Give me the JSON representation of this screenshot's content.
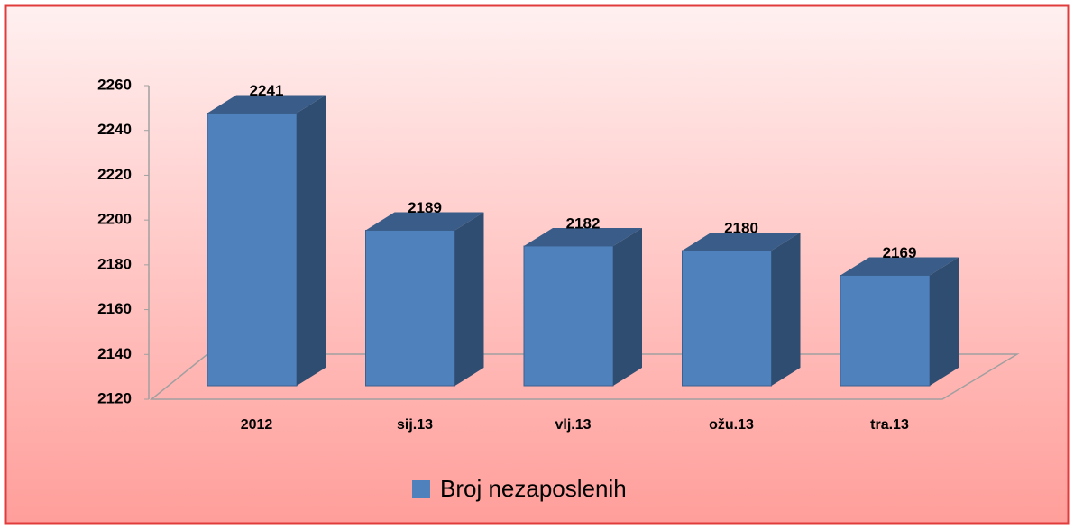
{
  "chart_data": {
    "type": "bar3d",
    "categories": [
      "2012",
      "sij.13",
      "vlj.13",
      "ožu.13",
      "tra.13"
    ],
    "series": [
      {
        "name": "Broj nezaposlenih",
        "color": "#4f81bd",
        "values": [
          2241,
          2189,
          2182,
          2180,
          2169
        ]
      }
    ],
    "ylim": [
      2120,
      2260
    ],
    "yticks": [
      2120,
      2140,
      2160,
      2180,
      2200,
      2220,
      2240,
      2260
    ],
    "legend": "bottom"
  }
}
